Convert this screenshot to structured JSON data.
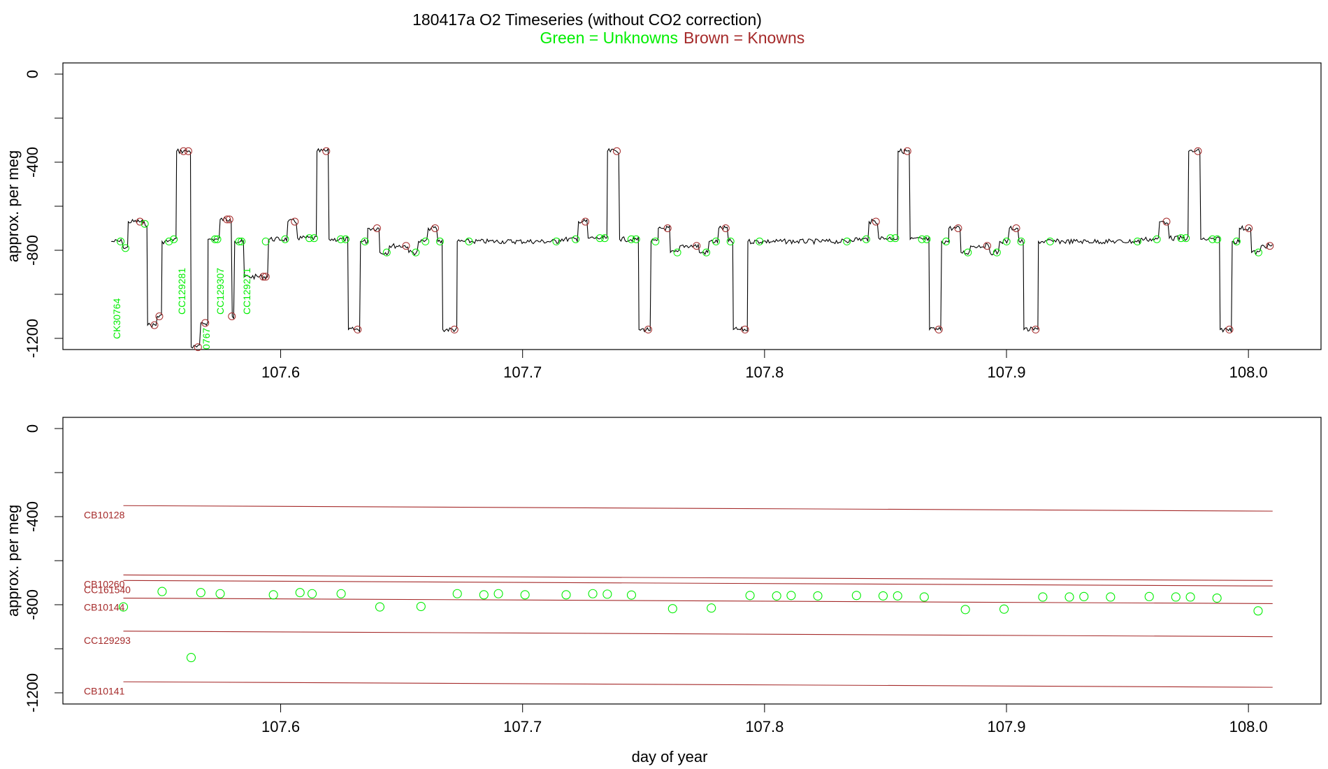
{
  "chart_data": {
    "type": "line",
    "title": "180417a   O2 Timeseries (without CO2 correction)",
    "legend_unknowns": "Green = Unknowns",
    "legend_knowns": "Brown = Knowns",
    "colors": {
      "unknowns": "#00ee00",
      "knowns": "#a52a2a",
      "trace": "#000000"
    },
    "xlabel": "day of year",
    "ylabel": "approx. per meg",
    "xlim": [
      107.51,
      108.03
    ],
    "ylim": [
      -1200,
      0
    ],
    "xticks": [
      "107.6",
      "107.7",
      "107.8",
      "107.9",
      "108.0"
    ],
    "yticks": [
      "0",
      "-400",
      "-800",
      "-1200"
    ],
    "top_panel": {
      "trace_segments": [
        [
          107.53,
          -760
        ],
        [
          107.535,
          -790
        ],
        [
          107.537,
          -670
        ],
        [
          107.543,
          -680
        ],
        [
          107.545,
          -1140
        ],
        [
          107.549,
          -1100
        ],
        [
          107.551,
          -760
        ],
        [
          107.555,
          -750
        ],
        [
          107.557,
          -350
        ],
        [
          107.561,
          -350
        ],
        [
          107.563,
          -1240
        ],
        [
          107.567,
          -1130
        ],
        [
          107.57,
          -750
        ],
        [
          107.574,
          -750
        ],
        [
          107.575,
          -660
        ],
        [
          107.579,
          -660
        ],
        [
          107.58,
          -1100
        ],
        [
          107.581,
          -760
        ],
        [
          107.584,
          -760
        ],
        [
          107.585,
          -920
        ],
        [
          107.594,
          -920
        ],
        [
          107.595,
          -760
        ]
      ],
      "point_labels": [
        "CK30764",
        "CC129281",
        "0767",
        "CC129307",
        "CC129271"
      ],
      "cycle": {
        "start": 107.595,
        "period": 0.1201,
        "levels": [
          {
            "dt": 0.0,
            "y": -750
          },
          {
            "dt": 0.008,
            "y": -670
          },
          {
            "dt": 0.012,
            "y": -745
          },
          {
            "dt": 0.018,
            "y": -745
          },
          {
            "dt": 0.02,
            "y": -350
          },
          {
            "dt": 0.025,
            "y": -750
          },
          {
            "dt": 0.031,
            "y": -750
          },
          {
            "dt": 0.033,
            "y": -1160
          },
          {
            "dt": 0.038,
            "y": -760
          },
          {
            "dt": 0.041,
            "y": -700
          },
          {
            "dt": 0.046,
            "y": -810
          },
          {
            "dt": 0.05,
            "y": -780
          },
          {
            "dt": 0.058,
            "y": -810
          },
          {
            "dt": 0.062,
            "y": -760
          },
          {
            "dt": 0.066,
            "y": -700
          },
          {
            "dt": 0.07,
            "y": -760
          },
          {
            "dt": 0.072,
            "y": -1160
          },
          {
            "dt": 0.078,
            "y": -760
          },
          {
            "dt": 0.084,
            "y": -760
          }
        ]
      }
    },
    "bottom_panel": {
      "references": [
        {
          "name": "CB10128",
          "y_start": -350,
          "y_end": -375
        },
        {
          "name": "CB10260",
          "y_start": -665,
          "y_end": -690
        },
        {
          "name": "CC161540",
          "y_start": -690,
          "y_end": -715
        },
        {
          "name": "CB10144",
          "y_start": -770,
          "y_end": -795
        },
        {
          "name": "CC129293",
          "y_start": -920,
          "y_end": -945
        },
        {
          "name": "CB10141",
          "y_start": -1150,
          "y_end": -1175
        }
      ],
      "unknowns": [
        [
          107.535,
          -810
        ],
        [
          107.551,
          -740
        ],
        [
          107.563,
          -1040
        ],
        [
          107.567,
          -745
        ],
        [
          107.575,
          -750
        ],
        [
          107.597,
          -755
        ],
        [
          107.608,
          -745
        ],
        [
          107.613,
          -750
        ],
        [
          107.625,
          -750
        ],
        [
          107.641,
          -810
        ],
        [
          107.658,
          -808
        ],
        [
          107.673,
          -750
        ],
        [
          107.684,
          -755
        ],
        [
          107.69,
          -750
        ],
        [
          107.701,
          -755
        ],
        [
          107.718,
          -755
        ],
        [
          107.729,
          -750
        ],
        [
          107.735,
          -752
        ],
        [
          107.745,
          -756
        ],
        [
          107.762,
          -818
        ],
        [
          107.778,
          -815
        ],
        [
          107.794,
          -758
        ],
        [
          107.805,
          -760
        ],
        [
          107.811,
          -758
        ],
        [
          107.822,
          -760
        ],
        [
          107.838,
          -758
        ],
        [
          107.849,
          -760
        ],
        [
          107.855,
          -760
        ],
        [
          107.866,
          -765
        ],
        [
          107.883,
          -822
        ],
        [
          107.899,
          -820
        ],
        [
          107.915,
          -765
        ],
        [
          107.926,
          -765
        ],
        [
          107.932,
          -763
        ],
        [
          107.943,
          -765
        ],
        [
          107.959,
          -763
        ],
        [
          107.97,
          -765
        ],
        [
          107.976,
          -765
        ],
        [
          107.987,
          -770
        ],
        [
          108.004,
          -828
        ]
      ]
    }
  }
}
